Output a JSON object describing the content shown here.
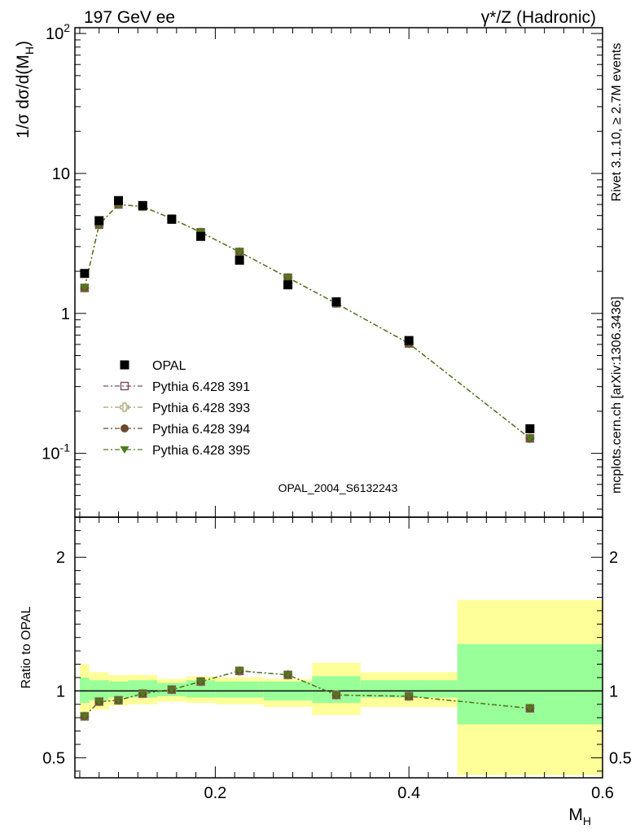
{
  "header": {
    "left_title": "197 GeV ee",
    "right_title": "γ*/Z (Hadronic)"
  },
  "side_text": {
    "rivet": "Rivet 3.1.10, ≥ 2.7M events",
    "mcplots": "mcplots.cern.ch [arXiv:1306.3436]"
  },
  "watermark": "OPAL_2004_S6132243",
  "colors": {
    "data": "#000000",
    "p391": "#7a4a64",
    "p393": "#a89e6a",
    "p394": "#6a4a2e",
    "p395": "#4e7a1e",
    "band_inner": "#99ff99",
    "band_outer": "#ffff99"
  },
  "chart_data": [
    {
      "type": "scatter",
      "panel": "main",
      "ylabel": "1/σ dσ/d(M_H)",
      "yscale": "log",
      "ylim": [
        0.035,
        110
      ],
      "xlim": [
        0.055,
        0.6
      ],
      "ytick_labels": [
        "10^2",
        "10",
        "1",
        "10^-1"
      ],
      "legend_position": "middle-left",
      "x": [
        0.065,
        0.08,
        0.1,
        0.125,
        0.155,
        0.185,
        0.225,
        0.275,
        0.325,
        0.4,
        0.525
      ],
      "xerr": [
        [
          0.06,
          0.07
        ],
        [
          0.07,
          0.09
        ],
        [
          0.09,
          0.11
        ],
        [
          0.11,
          0.14
        ],
        [
          0.14,
          0.17
        ],
        [
          0.17,
          0.2
        ],
        [
          0.2,
          0.25
        ],
        [
          0.25,
          0.3
        ],
        [
          0.3,
          0.35
        ],
        [
          0.35,
          0.45
        ],
        [
          0.45,
          0.6
        ]
      ],
      "series": [
        {
          "name": "OPAL",
          "marker": "filled-square",
          "values": [
            1.93,
            4.6,
            6.4,
            5.9,
            4.7,
            3.55,
            2.4,
            1.6,
            1.21,
            0.64,
            0.15
          ]
        },
        {
          "name": "Pythia 6.428 391",
          "marker": "open-square",
          "values": [
            1.52,
            4.3,
            6.0,
            5.8,
            4.75,
            3.8,
            2.75,
            1.8,
            1.18,
            0.61,
            0.128
          ]
        },
        {
          "name": "Pythia 6.428 393",
          "marker": "open-cross",
          "values": [
            1.52,
            4.3,
            6.0,
            5.8,
            4.75,
            3.8,
            2.75,
            1.8,
            1.18,
            0.61,
            0.128
          ]
        },
        {
          "name": "Pythia 6.428 394",
          "marker": "filled-circle",
          "values": [
            1.52,
            4.3,
            6.0,
            5.8,
            4.75,
            3.8,
            2.75,
            1.8,
            1.18,
            0.61,
            0.128
          ]
        },
        {
          "name": "Pythia 6.428 395",
          "marker": "filled-triangle-down",
          "values": [
            1.52,
            4.3,
            6.0,
            5.8,
            4.75,
            3.8,
            2.75,
            1.8,
            1.18,
            0.61,
            0.128
          ]
        }
      ]
    },
    {
      "type": "line",
      "panel": "ratio",
      "xlabel": "M_H",
      "ylabel": "Ratio to OPAL",
      "ylim": [
        0.35,
        2.3
      ],
      "xlim": [
        0.055,
        0.6
      ],
      "xticks": [
        0.2,
        0.4,
        0.6
      ],
      "xtick_labels": [
        "0.2",
        "0.4",
        "0.6"
      ],
      "yticks": [
        0.5,
        1,
        2
      ],
      "ytick_labels": [
        "0.5",
        "1",
        "2"
      ],
      "x": [
        0.065,
        0.08,
        0.1,
        0.125,
        0.155,
        0.185,
        0.225,
        0.275,
        0.325,
        0.4,
        0.525
      ],
      "bands": {
        "bins": [
          [
            0.06,
            0.07
          ],
          [
            0.07,
            0.09
          ],
          [
            0.09,
            0.11
          ],
          [
            0.11,
            0.14
          ],
          [
            0.14,
            0.17
          ],
          [
            0.17,
            0.2
          ],
          [
            0.2,
            0.25
          ],
          [
            0.25,
            0.3
          ],
          [
            0.3,
            0.35
          ],
          [
            0.35,
            0.45
          ],
          [
            0.45,
            0.6
          ]
        ],
        "inner": [
          [
            0.91,
            1.1
          ],
          [
            0.93,
            1.08
          ],
          [
            0.95,
            1.07
          ],
          [
            0.95,
            1.08
          ],
          [
            0.96,
            1.06
          ],
          [
            0.95,
            1.08
          ],
          [
            0.95,
            1.07
          ],
          [
            0.93,
            1.07
          ],
          [
            0.91,
            1.11
          ],
          [
            0.95,
            1.08
          ],
          [
            0.75,
            1.35
          ]
        ],
        "outer": [
          [
            0.82,
            1.2
          ],
          [
            0.86,
            1.14
          ],
          [
            0.89,
            1.12
          ],
          [
            0.9,
            1.12
          ],
          [
            0.92,
            1.09
          ],
          [
            0.91,
            1.11
          ],
          [
            0.9,
            1.1
          ],
          [
            0.88,
            1.09
          ],
          [
            0.82,
            1.21
          ],
          [
            0.88,
            1.14
          ],
          [
            0.37,
            1.68
          ]
        ]
      },
      "series": [
        {
          "name": "Pythia 6.428 391",
          "values": [
            0.81,
            0.92,
            0.93,
            0.98,
            1.01,
            1.07,
            1.15,
            1.12,
            0.97,
            0.96,
            0.87
          ]
        },
        {
          "name": "Pythia 6.428 393",
          "values": [
            0.81,
            0.92,
            0.93,
            0.98,
            1.01,
            1.07,
            1.15,
            1.12,
            0.97,
            0.96,
            0.87
          ]
        },
        {
          "name": "Pythia 6.428 394",
          "values": [
            0.81,
            0.92,
            0.93,
            0.98,
            1.01,
            1.07,
            1.15,
            1.12,
            0.97,
            0.96,
            0.87
          ]
        },
        {
          "name": "Pythia 6.428 395",
          "values": [
            0.81,
            0.92,
            0.93,
            0.98,
            1.01,
            1.07,
            1.15,
            1.12,
            0.97,
            0.96,
            0.87
          ]
        }
      ]
    }
  ]
}
